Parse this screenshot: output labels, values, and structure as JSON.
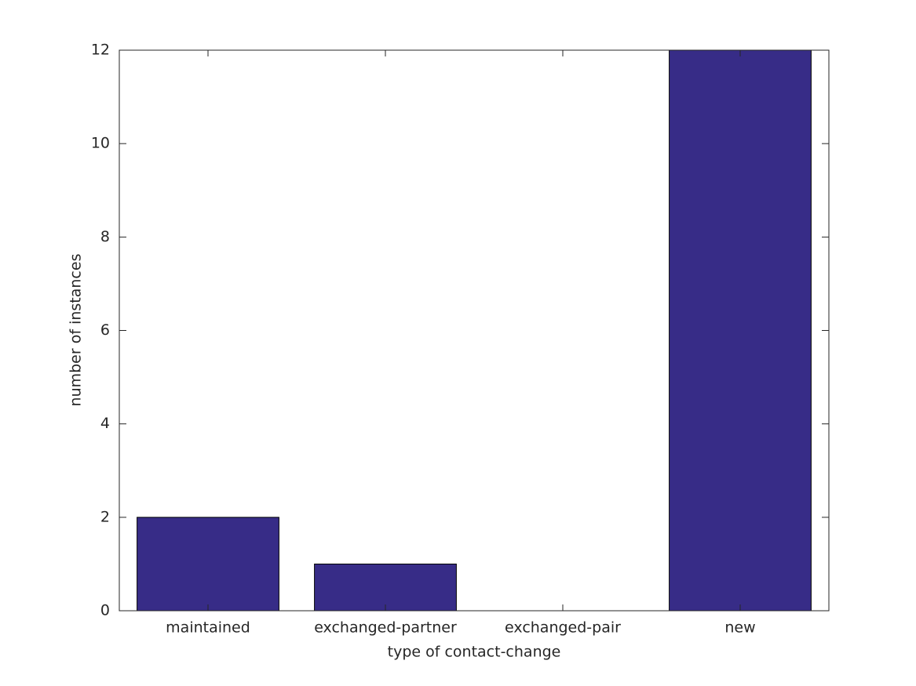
{
  "chart_data": {
    "type": "bar",
    "x_label": "type of contact-change",
    "y_label": "number of instances",
    "categories": [
      "maintained",
      "exchanged-partner",
      "exchanged-pair",
      "new"
    ],
    "values": [
      2,
      1,
      0,
      12
    ],
    "color": "#372c87",
    "ylim": [
      0,
      12
    ],
    "yticks": [
      0,
      2,
      4,
      6,
      8,
      10,
      12
    ]
  }
}
